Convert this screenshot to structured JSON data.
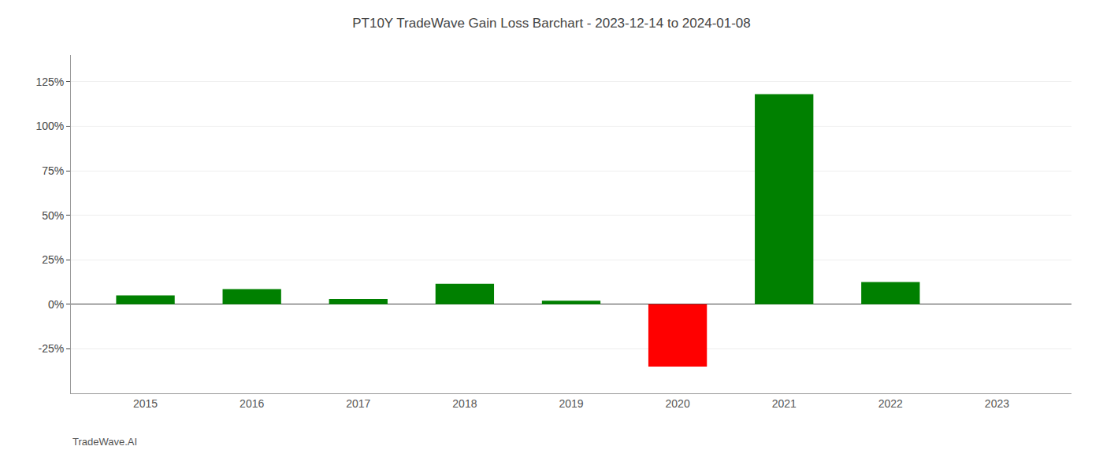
{
  "chart_data": {
    "type": "bar",
    "title": "PT10Y TradeWave Gain Loss Barchart - 2023-12-14 to 2024-01-08",
    "annotations": [
      "TradeWave.AI"
    ],
    "x": [
      2015,
      2016,
      2017,
      2018,
      2019,
      2020,
      2021,
      2022,
      2023
    ],
    "values": [
      5.0,
      8.5,
      3.0,
      11.5,
      2.0,
      -35.0,
      118.0,
      12.5,
      0.0
    ],
    "colors": [
      "#008000",
      "#008000",
      "#008000",
      "#008000",
      "#008000",
      "#ff0000",
      "#008000",
      "#008000",
      "#008000"
    ],
    "xlim": [
      2014.3,
      2023.7
    ],
    "xticks": [
      2015,
      2016,
      2017,
      2018,
      2019,
      2020,
      2021,
      2022,
      2023
    ],
    "ylim": [
      -50,
      140
    ],
    "yticks": [
      {
        "value": -25,
        "label": "-25%"
      },
      {
        "value": 0,
        "label": "0%"
      },
      {
        "value": 25,
        "label": "25%"
      },
      {
        "value": 50,
        "label": "50%"
      },
      {
        "value": 75,
        "label": "75%"
      },
      {
        "value": 100,
        "label": "100%"
      },
      {
        "value": 125,
        "label": "125%"
      }
    ],
    "grid": true
  }
}
